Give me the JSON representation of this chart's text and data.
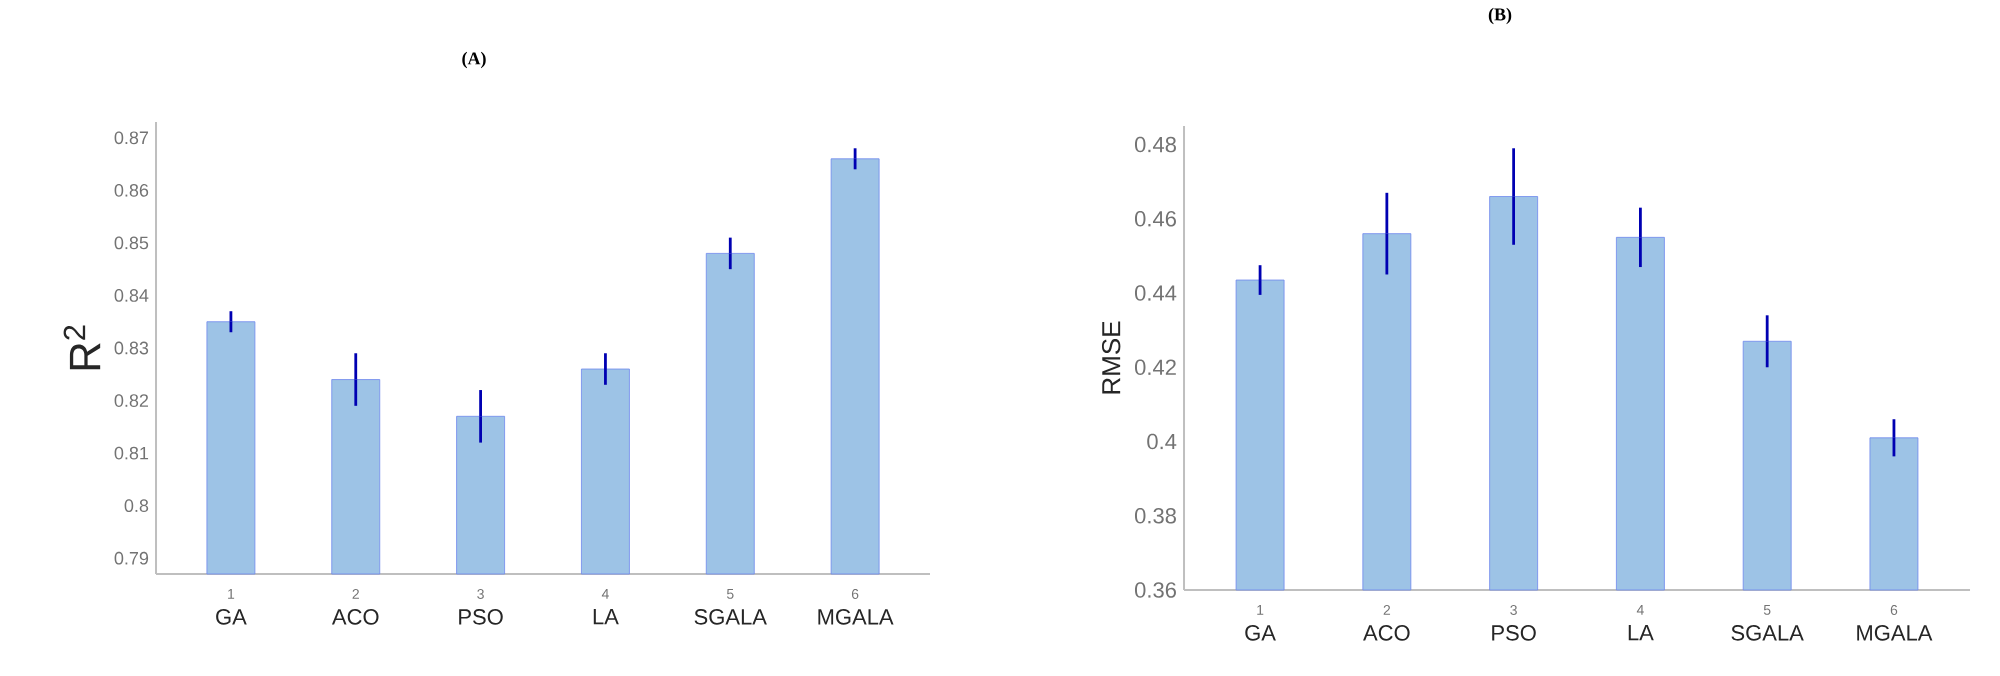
{
  "chart_data": [
    {
      "type": "bar",
      "title": "(A)",
      "ylabel": "R$^{2}$",
      "categories": [
        "GA",
        "ACO",
        "PSO",
        "LA",
        "SGALA",
        "MGALA"
      ],
      "annotations": [
        "1",
        "2",
        "3",
        "4",
        "5",
        "6"
      ],
      "values": [
        0.835,
        0.824,
        0.817,
        0.826,
        0.848,
        0.866
      ],
      "errors": [
        0.002,
        0.005,
        0.005,
        0.003,
        0.003,
        0.002
      ],
      "color": "#9dc3e6",
      "ylim": [
        0.787,
        0.873
      ],
      "yticks": [
        0.79,
        0.8,
        0.81,
        0.82,
        0.83,
        0.84,
        0.85,
        0.86,
        0.87
      ],
      "grid": false
    },
    {
      "type": "bar",
      "title": "(B)",
      "ylabel": "RMSE",
      "categories": [
        "GA",
        "ACO",
        "PSO",
        "LA",
        "SGALA",
        "MGALA"
      ],
      "annotations": [
        "1",
        "2",
        "3",
        "4",
        "5",
        "6"
      ],
      "values": [
        0.4435,
        0.456,
        0.466,
        0.455,
        0.427,
        0.401
      ],
      "errors": [
        0.004,
        0.011,
        0.013,
        0.008,
        0.007,
        0.005
      ],
      "color": "#9dc3e6",
      "ylim": [
        0.36,
        0.485
      ],
      "yticks": [
        0.36,
        0.38,
        0.4,
        0.42,
        0.44,
        0.46,
        0.48
      ],
      "grid": false
    }
  ]
}
